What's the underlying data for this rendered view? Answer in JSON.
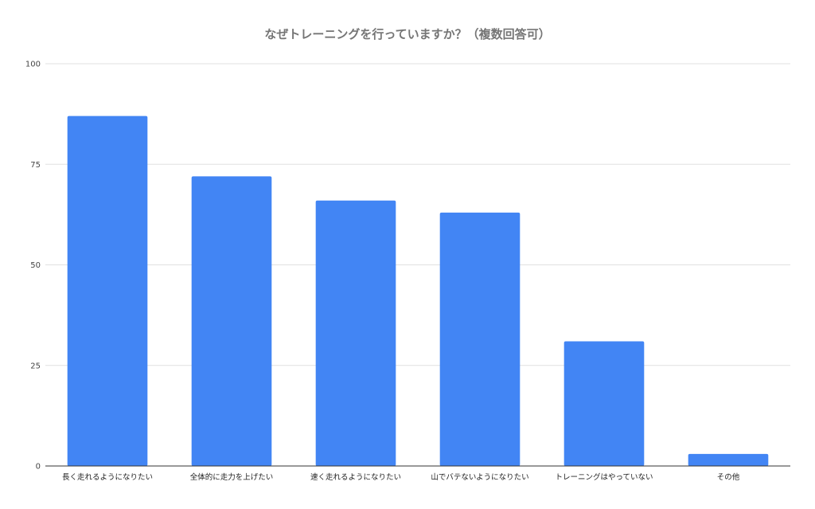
{
  "chart_data": {
    "type": "bar",
    "title": "なぜトレーニングを行っていますか？（複数回答可）",
    "xlabel": "",
    "ylabel": "",
    "categories": [
      "長く走れるようになりたい",
      "全体的に走力を上げたい",
      "速く走れるようになりたい",
      "山でバテないようになりたい",
      "トレーニングはやっていない",
      "その他"
    ],
    "values": [
      87,
      72,
      66,
      63,
      31,
      3
    ],
    "ylim": [
      0,
      100
    ],
    "yticks": [
      0,
      25,
      50,
      75,
      100
    ],
    "grid": true,
    "legend": "none",
    "bar_color": "#4285f4"
  }
}
